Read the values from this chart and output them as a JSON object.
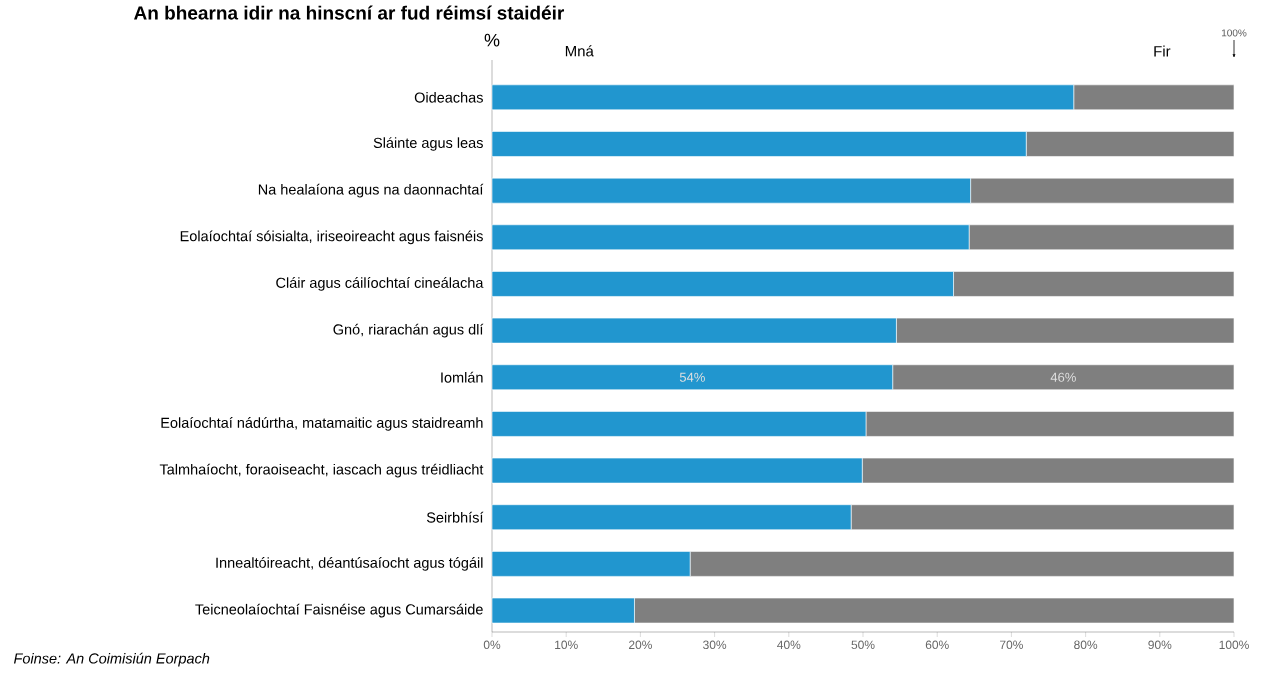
{
  "chart_data": {
    "type": "bar",
    "title": "An bhearna idir na hinscní ar fud réimsí staidéir",
    "orientation": "horizontal",
    "stacked": true,
    "categories": [
      "Oideachas",
      "Sláinte agus leas",
      "Na healaíona agus na daonnachtaí",
      "Eolaíochtaí sóisialta, iriseoireacht agus faisnéis",
      "Cláir agus cáilíochtaí cineálacha",
      "Gnó, riarachán agus dlí",
      "Iomlán",
      "Eolaíochtaí nádúrtha, matamaitic agus staidreamh",
      "Talmhaíocht, foraoiseacht, iascach agus tréidliacht",
      "Seirbhísí",
      "Innealtóireacht, déantúsaíocht agus tógáil",
      "Teicneolaíochtaí Faisnéise agus Cumarsáide"
    ],
    "series": [
      {
        "name": "Mná",
        "color": "#2196cf",
        "values": [
          78.4,
          72.0,
          64.5,
          64.3,
          62.2,
          54.5,
          54,
          50.4,
          49.9,
          48.4,
          26.7,
          19.2
        ],
        "value_labels": [
          null,
          null,
          null,
          null,
          null,
          null,
          "54%",
          null,
          null,
          null,
          null,
          null
        ]
      },
      {
        "name": "Fir",
        "color": "#7f7f7f",
        "values": [
          21.6,
          28.0,
          35.5,
          35.7,
          37.8,
          45.5,
          46,
          49.6,
          50.1,
          51.6,
          73.3,
          80.8
        ],
        "value_labels": [
          null,
          null,
          null,
          null,
          null,
          null,
          "46%",
          null,
          null,
          null,
          null,
          null
        ]
      }
    ],
    "xlim": [
      0,
      100
    ],
    "xticks": [
      {
        "value": 0,
        "label": "0%"
      },
      {
        "value": 10,
        "label": "10%"
      },
      {
        "value": 20,
        "label": "20%"
      },
      {
        "value": 30,
        "label": "30%"
      },
      {
        "value": 40,
        "label": "40%"
      },
      {
        "value": 50,
        "label": "50%"
      },
      {
        "value": 60,
        "label": "60%"
      },
      {
        "value": 70,
        "label": "70%"
      },
      {
        "value": 80,
        "label": "80%"
      },
      {
        "value": 90,
        "label": "90%"
      },
      {
        "value": 100,
        "label": "100%"
      }
    ],
    "annotations": [
      "%",
      {
        "text": "100%",
        "x": 100
      },
      "Foinse: An Coimisiún Eorpach"
    ],
    "grid": false,
    "legend": false
  }
}
